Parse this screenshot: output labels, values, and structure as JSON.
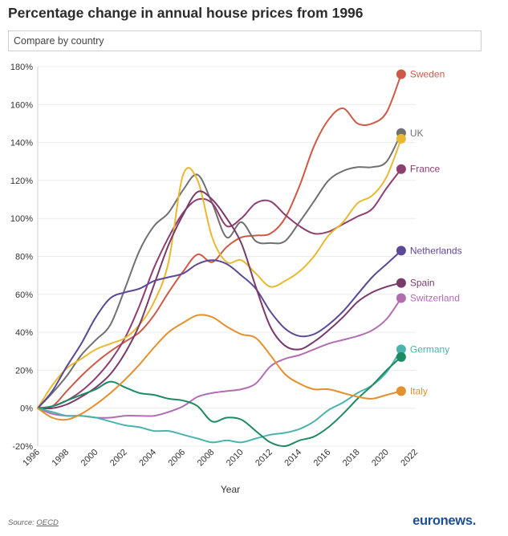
{
  "title": "Percentage change in annual house prices from 1996",
  "compare_label": "Compare by country",
  "source": {
    "label": "Source:",
    "name": "OECD"
  },
  "logo": {
    "text": "euronews",
    "suffix": "."
  },
  "chart_data": {
    "type": "line",
    "title": "Percentage change in annual house prices from 1996",
    "xlabel": "Year",
    "ylabel": "",
    "xlim": [
      1996,
      2022
    ],
    "ylim": [
      -20,
      180
    ],
    "xticks": [
      1996,
      1998,
      2000,
      2002,
      2004,
      2006,
      2008,
      2010,
      2012,
      2014,
      2016,
      2018,
      2020,
      2022
    ],
    "xtick_labels": [
      "1996",
      "1998",
      "2000",
      "2002",
      "2004",
      "2006",
      "2008",
      "2010",
      "2012",
      "2014",
      "2016",
      "2018",
      "2020",
      "2022"
    ],
    "yticks": [
      -20,
      0,
      20,
      40,
      60,
      80,
      100,
      120,
      140,
      160,
      180
    ],
    "ytick_labels": [
      "-20%",
      "0%",
      "20%",
      "40%",
      "60%",
      "80%",
      "100%",
      "120%",
      "140%",
      "160%",
      "180%"
    ],
    "grid": true,
    "series": [
      {
        "name": "Sweden",
        "color": "#cc5a46",
        "x": [
          1996,
          1997,
          1998,
          1999,
          2000,
          2001,
          2002,
          2003,
          2004,
          2005,
          2006,
          2007,
          2008,
          2009,
          2010,
          2011,
          2012,
          2013,
          2014,
          2015,
          2016,
          2017,
          2018,
          2019,
          2020,
          2021
        ],
        "y": [
          0,
          1,
          9,
          17,
          24,
          30,
          35,
          40,
          49,
          61,
          72,
          81,
          77,
          85,
          90,
          91,
          92,
          100,
          117,
          138,
          152,
          158,
          150,
          150,
          156,
          176
        ]
      },
      {
        "name": "UK",
        "color": "#707070",
        "x": [
          1996,
          1997,
          1998,
          1999,
          2000,
          2001,
          2002,
          2003,
          2004,
          2005,
          2006,
          2007,
          2008,
          2009,
          2010,
          2011,
          2012,
          2013,
          2014,
          2015,
          2016,
          2017,
          2018,
          2019,
          2020,
          2021
        ],
        "y": [
          0,
          8,
          17,
          28,
          36,
          44,
          63,
          83,
          96,
          103,
          115,
          123,
          108,
          90,
          98,
          88,
          87,
          88,
          98,
          109,
          120,
          125,
          127,
          127,
          130,
          145
        ]
      },
      {
        "name": "France",
        "color": "#8f3e70",
        "x": [
          1996,
          1997,
          1998,
          1999,
          2000,
          2001,
          2002,
          2003,
          2004,
          2005,
          2006,
          2007,
          2008,
          2009,
          2010,
          2011,
          2012,
          2013,
          2014,
          2015,
          2016,
          2017,
          2018,
          2019,
          2020,
          2021
        ],
        "y": [
          0,
          1,
          4,
          9,
          16,
          25,
          37,
          54,
          74,
          90,
          103,
          110,
          108,
          96,
          100,
          108,
          109,
          102,
          96,
          92,
          93,
          97,
          101,
          105,
          116,
          126
        ]
      },
      {
        "name": "",
        "color": "#e8b930",
        "x": [
          1996,
          1997,
          1998,
          1999,
          2000,
          2001,
          2002,
          2003,
          2004,
          2005,
          2006,
          2007,
          2008,
          2009,
          2010,
          2011,
          2012,
          2013,
          2014,
          2015,
          2016,
          2017,
          2018,
          2019,
          2020,
          2021
        ],
        "y": [
          0,
          12,
          21,
          26,
          31,
          34,
          37,
          44,
          56,
          77,
          123,
          120,
          90,
          77,
          78,
          71,
          64,
          67,
          72,
          80,
          91,
          98,
          108,
          112,
          122,
          142
        ]
      },
      {
        "name": "Netherlands",
        "color": "#5b4896",
        "x": [
          1996,
          1997,
          1998,
          1999,
          2000,
          2001,
          2002,
          2003,
          2004,
          2005,
          2006,
          2007,
          2008,
          2009,
          2010,
          2011,
          2012,
          2013,
          2014,
          2015,
          2016,
          2017,
          2018,
          2019,
          2020,
          2021
        ],
        "y": [
          0,
          9,
          22,
          34,
          48,
          58,
          61,
          63,
          67,
          69,
          71,
          76,
          78,
          76,
          70,
          63,
          51,
          42,
          38,
          39,
          44,
          51,
          60,
          69,
          76,
          83
        ]
      },
      {
        "name": "Spain",
        "color": "#7a3a6c",
        "x": [
          1996,
          1997,
          1998,
          1999,
          2000,
          2001,
          2002,
          2003,
          2004,
          2005,
          2006,
          2007,
          2008,
          2009,
          2010,
          2011,
          2012,
          2013,
          2014,
          2015,
          2016,
          2017,
          2018,
          2019,
          2020,
          2021
        ],
        "y": [
          0,
          0,
          2,
          6,
          11,
          18,
          29,
          44,
          65,
          86,
          102,
          114,
          110,
          100,
          87,
          64,
          43,
          33,
          31,
          35,
          41,
          48,
          56,
          61,
          64,
          66
        ]
      },
      {
        "name": "Switzerland",
        "color": "#b26db1",
        "x": [
          1996,
          1997,
          1998,
          1999,
          2000,
          2001,
          2002,
          2003,
          2004,
          2005,
          2006,
          2007,
          2008,
          2009,
          2010,
          2011,
          2012,
          2013,
          2014,
          2015,
          2016,
          2017,
          2018,
          2019,
          2020,
          2021
        ],
        "y": [
          0,
          -3,
          -4,
          -4,
          -5,
          -5,
          -4,
          -4,
          -4,
          -2,
          1,
          6,
          8,
          9,
          10,
          13,
          22,
          26,
          28,
          31,
          34,
          36,
          38,
          41,
          47,
          58
        ]
      },
      {
        "name": "Germany",
        "color": "#4bb3ae",
        "x": [
          1996,
          1997,
          1998,
          1999,
          2000,
          2001,
          2002,
          2003,
          2004,
          2005,
          2006,
          2007,
          2008,
          2009,
          2010,
          2011,
          2012,
          2013,
          2014,
          2015,
          2016,
          2017,
          2018,
          2019,
          2020,
          2021
        ],
        "y": [
          0,
          -2,
          -4,
          -4,
          -5,
          -7,
          -9,
          -10,
          -12,
          -12,
          -14,
          -16,
          -18,
          -17,
          -18,
          -16,
          -14,
          -13,
          -11,
          -7,
          -1,
          3,
          8,
          12,
          19,
          31
        ]
      },
      {
        "name": "",
        "color": "#1e8a62",
        "x": [
          1996,
          1997,
          1998,
          1999,
          2000,
          2001,
          2002,
          2003,
          2004,
          2005,
          2006,
          2007,
          2008,
          2009,
          2010,
          2011,
          2012,
          2013,
          2014,
          2015,
          2016,
          2017,
          2018,
          2019,
          2020,
          2021
        ],
        "y": [
          0,
          1,
          4,
          7,
          10,
          14,
          11,
          8,
          7,
          5,
          4,
          1,
          -7,
          -5,
          -6,
          -12,
          -18,
          -20,
          -17,
          -15,
          -10,
          -3,
          5,
          12,
          20,
          27
        ]
      },
      {
        "name": "Italy",
        "color": "#e3902e",
        "x": [
          1996,
          1997,
          1998,
          1999,
          2000,
          2001,
          2002,
          2003,
          2004,
          2005,
          2006,
          2007,
          2008,
          2009,
          2010,
          2011,
          2012,
          2013,
          2014,
          2015,
          2016,
          2017,
          2018,
          2019,
          2020,
          2021
        ],
        "y": [
          0,
          -5,
          -6,
          -3,
          2,
          8,
          15,
          23,
          32,
          40,
          45,
          49,
          48,
          43,
          39,
          37,
          28,
          18,
          13,
          10,
          10,
          8,
          6,
          5,
          7,
          9
        ]
      }
    ]
  }
}
